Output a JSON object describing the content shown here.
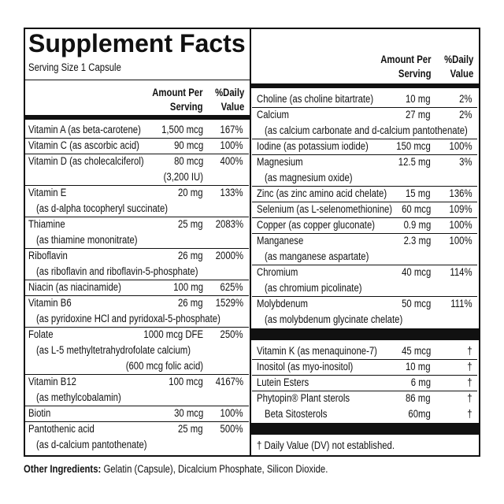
{
  "header": {
    "title": "Supplement Facts",
    "serving_size": "Serving Size 1 Capsule"
  },
  "left": {
    "amount_header": [
      "Amount Per",
      "Serving"
    ],
    "dv_header": [
      "%Daily",
      "Value"
    ],
    "rows": [
      {
        "name": "Vitamin A (as beta-carotene)",
        "amount": "1,500 mcg",
        "dv": "167%"
      },
      {
        "name": "Vitamin C (as ascorbic acid)",
        "amount": "90 mcg",
        "dv": "100%"
      },
      {
        "name": "Vitamin D (as cholecalciferol)",
        "amount": "80 mcg",
        "dv": "400%",
        "amount_note": "(3,200 IU)"
      },
      {
        "name": "Vitamin E",
        "amount": "20 mg",
        "dv": "133%",
        "notes": [
          "(as d-alpha tocopheryl succinate)"
        ]
      },
      {
        "name": "Thiamine",
        "amount": "25 mg",
        "dv": "2083%",
        "notes": [
          "(as thiamine mononitrate)"
        ]
      },
      {
        "name": "Riboflavin",
        "amount": "26 mg",
        "dv": "2000%",
        "notes": [
          "(as riboflavin and riboflavin-5-phosphate)"
        ]
      },
      {
        "name": "Niacin (as niacinamide)",
        "amount": "100 mg",
        "dv": "625%"
      },
      {
        "name": "Vitamin B6",
        "amount": "26 mg",
        "dv": "1529%",
        "notes": [
          "(as pyridoxine HCl and pyridoxal-5-phosphate)"
        ]
      },
      {
        "name": "Folate",
        "amount": "1000 mcg DFE",
        "dv": "250%",
        "notes": [
          "(as L-5 methyltetrahydrofolate calcium)"
        ],
        "amount_note": "(600 mcg folic acid)"
      },
      {
        "name": "Vitamin B12",
        "amount": "100 mcg",
        "dv": "4167%",
        "notes": [
          "(as methylcobalamin)"
        ]
      },
      {
        "name": "Biotin",
        "amount": "30 mcg",
        "dv": "100%"
      },
      {
        "name": "Pantothenic acid",
        "amount": "25 mg",
        "dv": "500%",
        "notes": [
          "(as d-calcium pantothenate)"
        ]
      }
    ]
  },
  "right": {
    "amount_header": [
      "Amount Per",
      "Serving"
    ],
    "dv_header": [
      "%Daily",
      "Value"
    ],
    "rows": [
      {
        "name": "Choline (as choline bitartrate)",
        "amount": "10 mg",
        "dv": "2%"
      },
      {
        "name": "Calcium",
        "amount": "27 mg",
        "dv": "2%",
        "notes": [
          "(as calcium carbonate and d-calcium pantothenate)"
        ]
      },
      {
        "name": "Iodine (as potassium iodide)",
        "amount": "150 mcg",
        "dv": "100%"
      },
      {
        "name": "Magnesium",
        "amount": "12.5 mg",
        "dv": "3%",
        "notes": [
          "(as magnesium oxide)"
        ]
      },
      {
        "name": "Zinc (as zinc amino acid chelate)",
        "amount": "15 mg",
        "dv": "136%"
      },
      {
        "name": "Selenium (as L-selenomethionine)",
        "amount": "60 mcg",
        "dv": "109%"
      },
      {
        "name": "Copper (as copper gluconate)",
        "amount": "0.9 mg",
        "dv": "100%"
      },
      {
        "name": "Manganese",
        "amount": "2.3 mg",
        "dv": "100%",
        "notes": [
          "(as manganese aspartate)"
        ]
      },
      {
        "name": "Chromium",
        "amount": "40 mcg",
        "dv": "114%",
        "notes": [
          "(as chromium picolinate)"
        ]
      },
      {
        "name": "Molybdenum",
        "amount": "50 mcg",
        "dv": "111%",
        "notes": [
          "(as molybdenum glycinate chelate)"
        ]
      }
    ],
    "other_rows": [
      {
        "name": "Vitamin K (as menaquinone-7)",
        "amount": "45 mcg",
        "dv": "†"
      },
      {
        "name": "Inositol (as myo-inositol)",
        "amount": "10 mg",
        "dv": "†"
      },
      {
        "name": "Lutein Esters",
        "amount": "6 mg",
        "dv": "†"
      },
      {
        "name": "Phytopin® Plant sterols",
        "amount": "86 mg",
        "dv": "†",
        "subrows": [
          {
            "name": "Beta Sitosterols",
            "amount": "60mg",
            "dv": "†"
          }
        ]
      }
    ],
    "footnote": "† Daily Value (DV) not established."
  },
  "other_ingredients": {
    "label": "Other Ingredients:",
    "text": "Gelatin (Capsule), Dicalcium Phosphate, Silicon Dioxide."
  }
}
